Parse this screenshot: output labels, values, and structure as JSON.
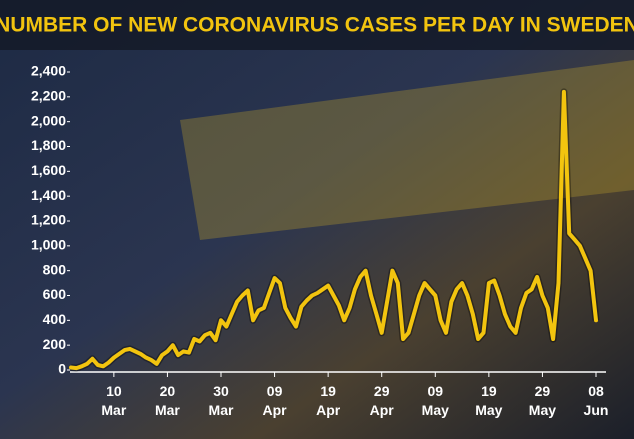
{
  "chart_data": {
    "type": "line",
    "title": "NUMBER OF NEW CORONAVIRUS CASES PER DAY IN SWEDEN",
    "color": "#f2c40f",
    "ylim": [
      0,
      2400
    ],
    "yticks": [
      0,
      {
        "value": 200,
        "label": "200"
      },
      {
        "value": 400,
        "label": "400"
      },
      {
        "value": 600,
        "label": "600"
      },
      {
        "value": 800,
        "label": "800"
      },
      {
        "value": 1000,
        "label": "1,000"
      },
      {
        "value": 1200,
        "label": "1,200"
      },
      {
        "value": 1400,
        "label": "1,400"
      },
      {
        "value": 1600,
        "label": "1,600"
      },
      {
        "value": 1800,
        "label": "1,800"
      },
      {
        "value": 2000,
        "label": "2,000"
      },
      {
        "value": 2200,
        "label": "2,200"
      },
      {
        "value": 2400,
        "label": "2,400"
      }
    ],
    "categories": [
      null,
      null,
      null,
      null,
      null,
      null,
      null,
      null,
      {
        "day": "10",
        "month": "Mar"
      },
      null,
      null,
      null,
      null,
      null,
      null,
      null,
      null,
      null,
      {
        "day": "20",
        "month": "Mar"
      },
      null,
      null,
      null,
      null,
      null,
      null,
      null,
      null,
      null,
      {
        "day": "30",
        "month": "Mar"
      },
      null,
      null,
      null,
      null,
      null,
      null,
      null,
      null,
      null,
      {
        "day": "09",
        "month": "Apr"
      },
      null,
      null,
      null,
      null,
      null,
      null,
      null,
      null,
      null,
      {
        "day": "19",
        "month": "Apr"
      },
      null,
      null,
      null,
      null,
      null,
      null,
      null,
      null,
      null,
      {
        "day": "29",
        "month": "Apr"
      },
      null,
      null,
      null,
      null,
      null,
      null,
      null,
      null,
      null,
      {
        "day": "09",
        "month": "May"
      },
      null,
      null,
      null,
      null,
      null,
      null,
      null,
      null,
      null,
      {
        "day": "19",
        "month": "May"
      },
      null,
      null,
      null,
      null,
      null,
      null,
      null,
      null,
      null,
      {
        "day": "29",
        "month": "May"
      },
      null,
      null,
      null,
      null,
      null,
      null,
      null,
      null,
      null,
      {
        "day": "08",
        "month": "Jun"
      }
    ],
    "values": [
      20,
      15,
      30,
      50,
      90,
      40,
      30,
      60,
      100,
      130,
      160,
      170,
      150,
      130,
      100,
      80,
      50,
      120,
      150,
      200,
      120,
      150,
      140,
      250,
      230,
      280,
      300,
      240,
      400,
      350,
      450,
      550,
      600,
      640,
      400,
      480,
      500,
      620,
      740,
      700,
      500,
      420,
      350,
      510,
      560,
      600,
      620,
      650,
      680,
      600,
      520,
      400,
      500,
      650,
      750,
      800,
      600,
      450,
      300,
      550,
      800,
      700,
      250,
      300,
      450,
      600,
      700,
      650,
      600,
      400,
      300,
      550,
      650,
      700,
      600,
      450,
      250,
      300,
      700,
      720,
      600,
      450,
      350,
      300,
      500,
      620,
      650,
      750,
      600,
      500,
      250,
      700,
      2240,
      1100,
      1050,
      1000,
      900,
      800,
      400
    ]
  }
}
